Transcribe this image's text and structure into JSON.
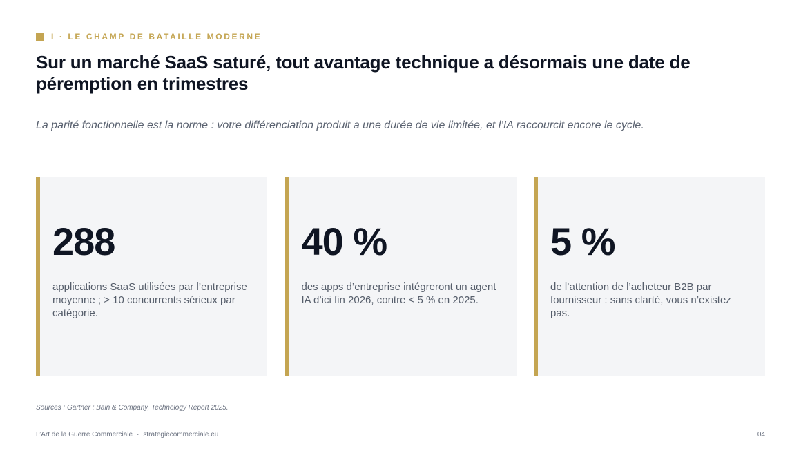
{
  "header": {
    "eyebrow": "I · LE CHAMP DE BATAILLE MODERNE",
    "title": "Sur un marché SaaS saturé, tout avantage technique a désormais une date de péremption en trimestres",
    "subtitle": "La parité fonctionnelle est la norme : votre différenciation produit a une durée de vie limitée, et l’IA raccourcit encore le cycle."
  },
  "cards": [
    {
      "stat": "288",
      "description": "applications SaaS utilisées par l’entreprise moyenne ; > 10 concurrents sérieux par catégorie."
    },
    {
      "stat": "40 %",
      "description": "des apps d’entreprise intégreront un agent IA d’ici fin 2026, contre < 5 % en 2025."
    },
    {
      "stat": "5 %",
      "description": "de l’attention de l’acheteur B2B par fournisseur : sans clarté, vous n’existez pas."
    }
  ],
  "sources": "Sources : Gartner ; Bain & Company, Technology Report 2025.",
  "footer": {
    "brand": "L’Art de la Guerre Commerciale",
    "separator": "·",
    "site": "strategiecommerciale.eu",
    "page_number": "04"
  },
  "colors": {
    "accent": "#c4a552",
    "card_background": "#f4f5f7",
    "heading": "#0f1523"
  }
}
